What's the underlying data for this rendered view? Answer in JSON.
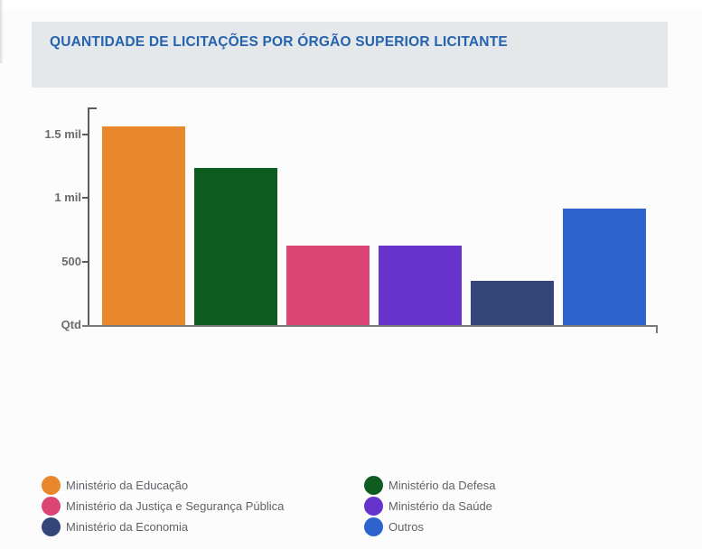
{
  "page": {
    "background": "#FCFCFC"
  },
  "header": {
    "title": "QUANTIDADE DE LICITAÇÕES POR ÓRGÃO SUPERIOR LICITANTE",
    "band_color": "#E4E8EB",
    "title_color": "#2563AF"
  },
  "chart_data": {
    "type": "bar",
    "title": "QUANTIDADE DE LICITAÇÕES POR ÓRGÃO SUPERIOR LICITANTE",
    "xlabel": "",
    "ylabel": "Qtd",
    "categories": [
      "Ministério da Educação",
      "Ministério da Defesa",
      "Ministério da Justiça e Segurança Pública",
      "Ministério da Saúde",
      "Ministério da Economia",
      "Outros"
    ],
    "values": [
      1560,
      1235,
      625,
      625,
      350,
      915
    ],
    "colors": [
      "#E8872B",
      "#0E5C20",
      "#DC4677",
      "#6633CC",
      "#334579",
      "#2C63CC"
    ],
    "y_ticks": [
      {
        "label": "1.5 mil",
        "value": 1500
      },
      {
        "label": "1 mil",
        "value": 1000
      },
      {
        "label": "500",
        "value": 500
      },
      {
        "label": "Qtd",
        "value": 0
      }
    ],
    "ylim": [
      0,
      1700
    ],
    "grid": false,
    "legend_position": "bottom"
  },
  "legend": {
    "columns": [
      [
        {
          "label": "Ministério da Educação",
          "color": "#E8872B"
        },
        {
          "label": "Ministério da Justiça e Segurança Pública",
          "color": "#DC4677"
        },
        {
          "label": "Ministério da Economia",
          "color": "#334579"
        }
      ],
      [
        {
          "label": "Ministério da Defesa",
          "color": "#0E5C20"
        },
        {
          "label": "Ministério da Saúde",
          "color": "#6633CC"
        },
        {
          "label": "Outros",
          "color": "#2C63CC"
        }
      ]
    ]
  }
}
